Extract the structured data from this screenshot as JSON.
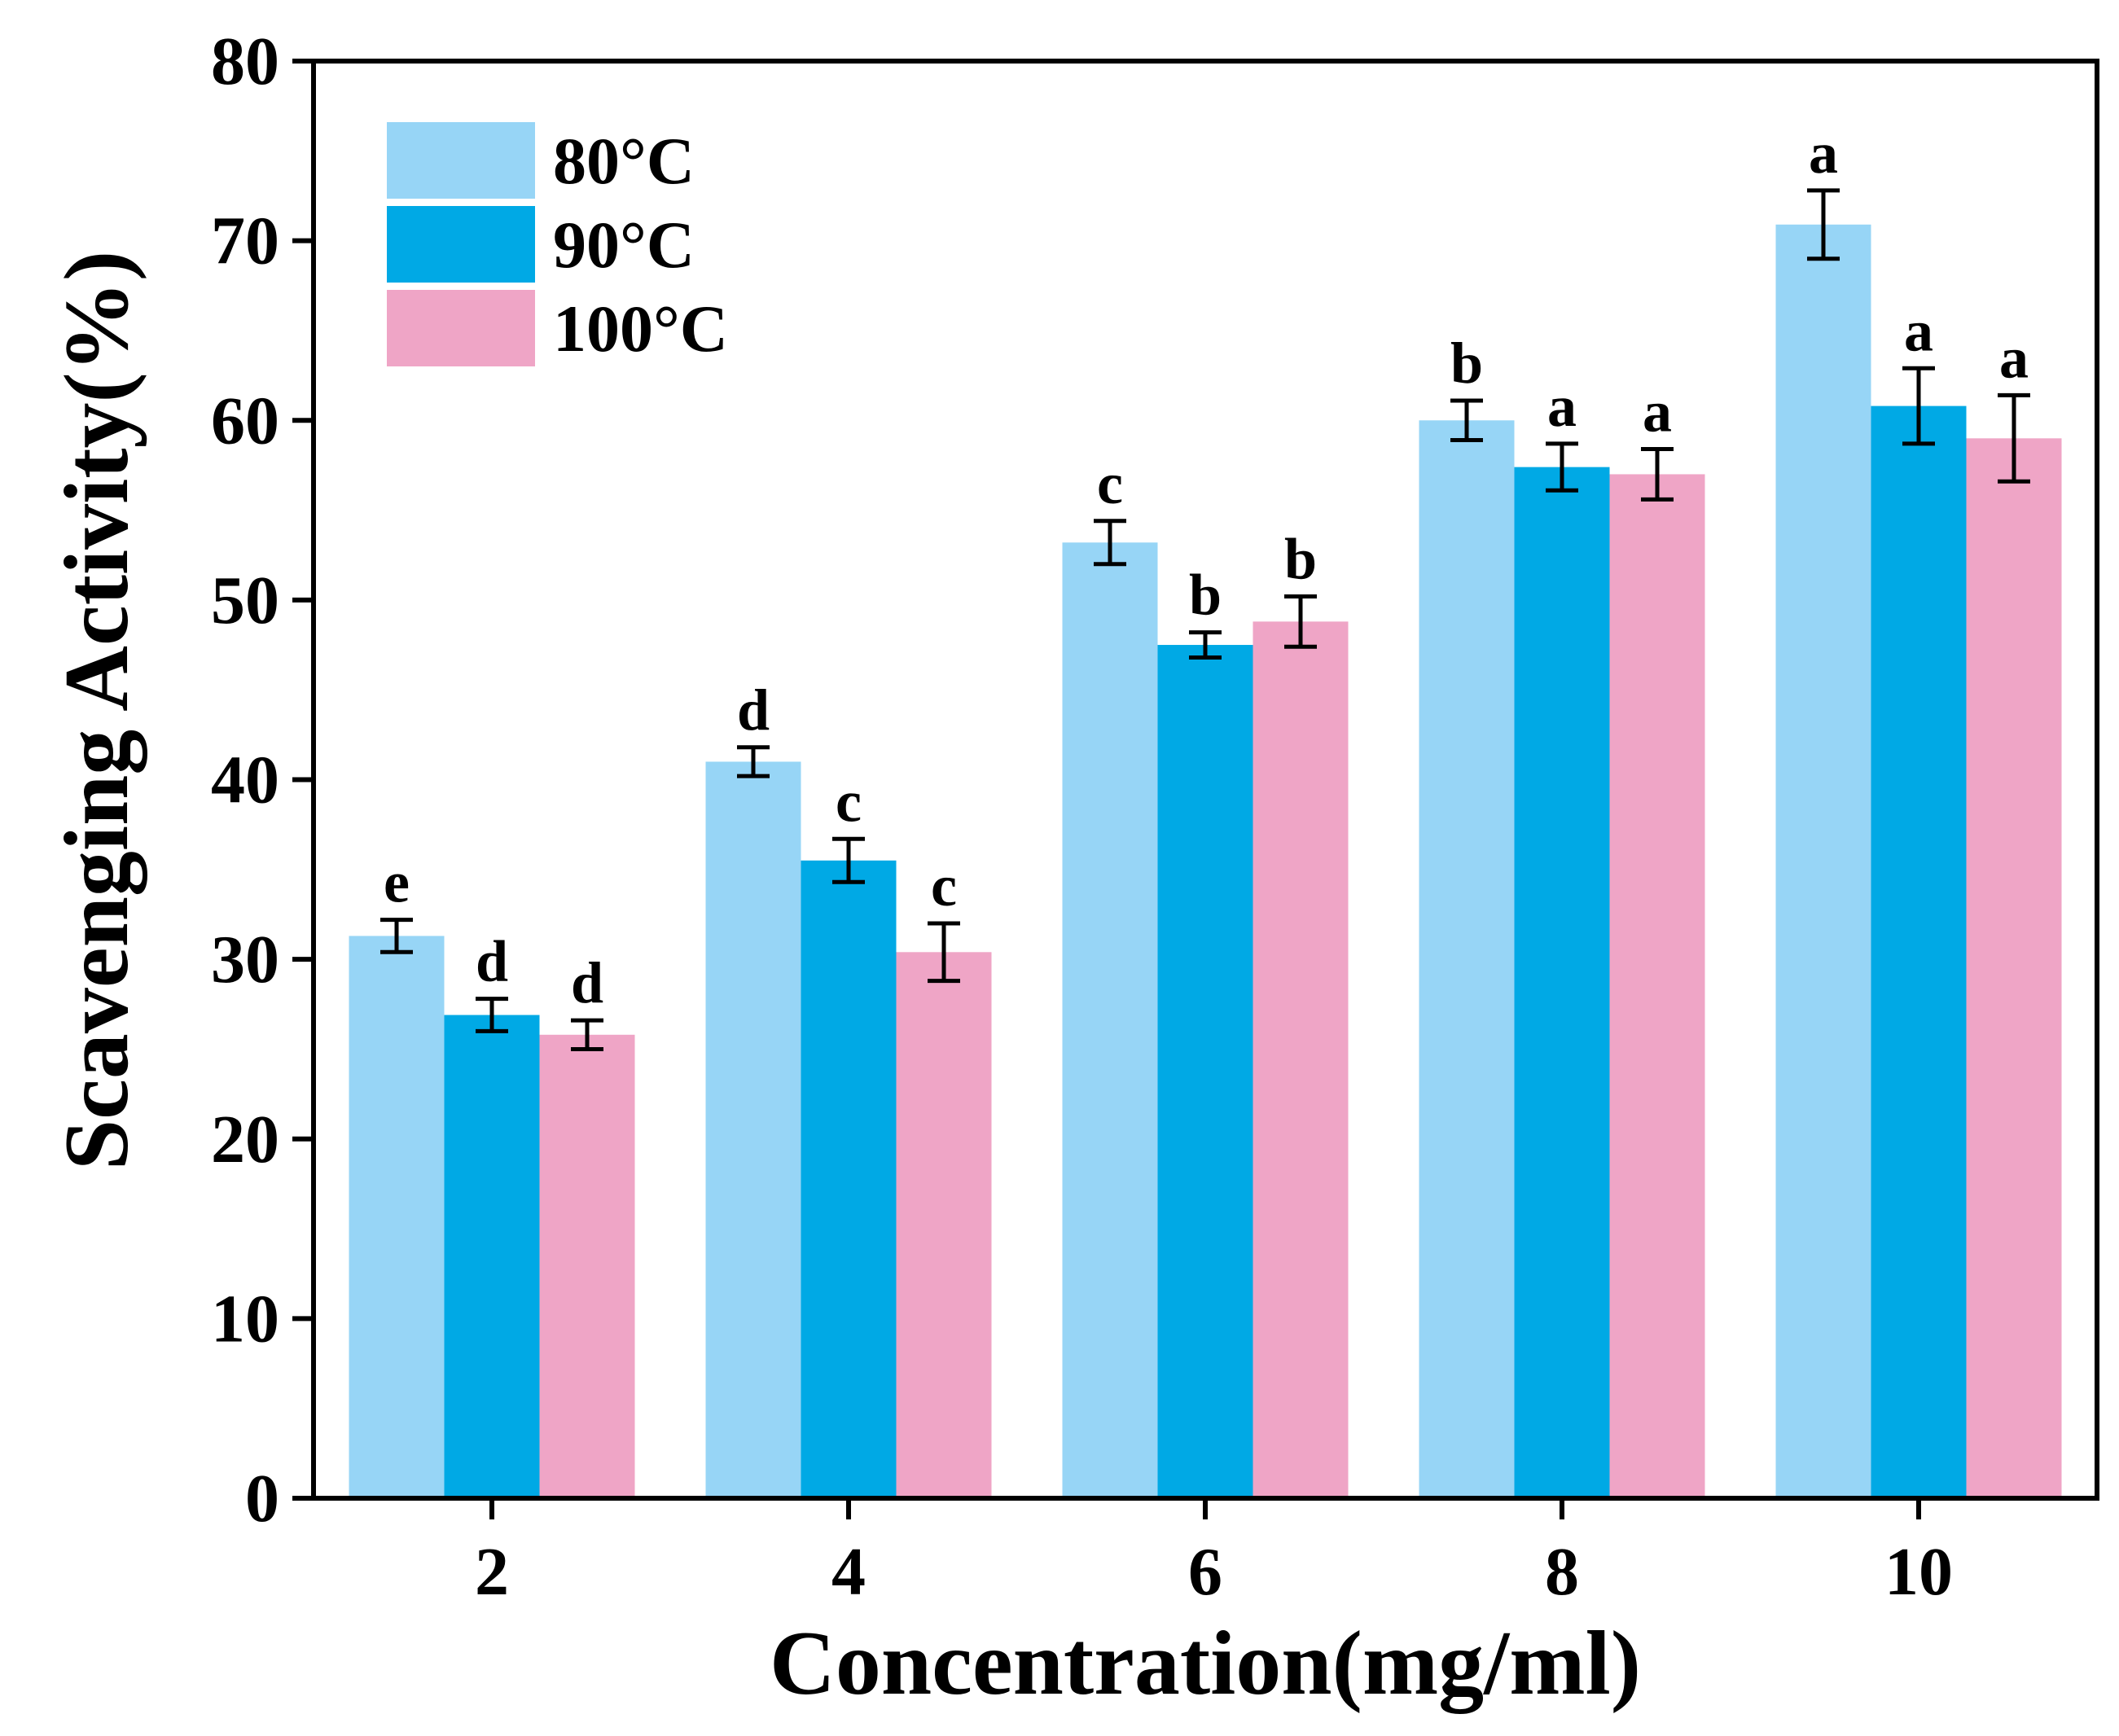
{
  "chart_data": {
    "type": "bar",
    "title": "",
    "xlabel": "Concentration(mg/ml)",
    "ylabel": "Scavenging Activity(%)",
    "categories": [
      "2",
      "4",
      "6",
      "8",
      "10"
    ],
    "ylim": [
      0,
      80
    ],
    "yticks": [
      "0",
      "10",
      "20",
      "30",
      "40",
      "50",
      "60",
      "70",
      "80"
    ],
    "grid": false,
    "legend_position": "top-left",
    "series": [
      {
        "name": "80°C",
        "color": "#97D5F6",
        "values": [
          31.3,
          41.0,
          53.2,
          60.0,
          70.9
        ],
        "errors": [
          0.9,
          0.8,
          1.2,
          1.1,
          1.9
        ],
        "labels": [
          "e",
          "d",
          "c",
          "b",
          "a"
        ]
      },
      {
        "name": "90°C",
        "color": "#00A9E5",
        "values": [
          26.9,
          35.5,
          47.5,
          57.4,
          60.8
        ],
        "errors": [
          0.9,
          1.2,
          0.7,
          1.3,
          2.1
        ],
        "labels": [
          "d",
          "c",
          "b",
          "a",
          "a"
        ]
      },
      {
        "name": "100°C",
        "color": "#EFA5C6",
        "values": [
          25.8,
          30.4,
          48.8,
          57.0,
          59.0
        ],
        "errors": [
          0.8,
          1.6,
          1.4,
          1.4,
          2.4
        ],
        "labels": [
          "d",
          "c",
          "b",
          "a",
          "a"
        ]
      }
    ]
  }
}
